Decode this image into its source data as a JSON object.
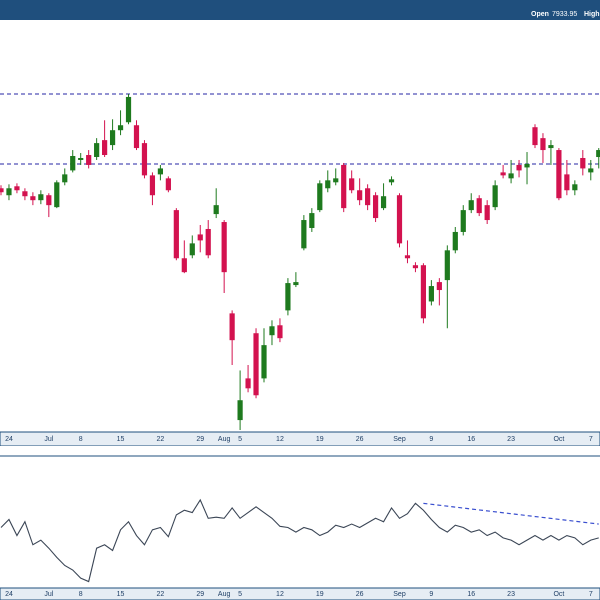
{
  "chart_data": [
    {
      "type": "candlestick",
      "open_label": "Open",
      "high_label": "High",
      "categories": [
        null,
        "24",
        null,
        null,
        null,
        null,
        "Jul",
        null,
        null,
        null,
        "8",
        null,
        null,
        null,
        null,
        "15",
        null,
        null,
        null,
        null,
        "22",
        null,
        null,
        null,
        null,
        "29",
        null,
        null,
        "Aug",
        null,
        "5",
        null,
        null,
        null,
        null,
        "12",
        null,
        null,
        null,
        null,
        "19",
        null,
        null,
        null,
        null,
        "26",
        null,
        null,
        null,
        null,
        "Sep",
        null,
        null,
        null,
        "9",
        null,
        null,
        null,
        null,
        "16",
        null,
        null,
        null,
        null,
        "23",
        null,
        null,
        null,
        null,
        null,
        "Oct",
        null,
        null,
        null,
        "7",
        null
      ],
      "open": [
        7871,
        7857,
        7875,
        7865,
        7855,
        7847,
        7857,
        7833,
        7883,
        7907,
        7928,
        7938,
        7934,
        7968,
        7958,
        7988,
        8004,
        7998,
        7962,
        7897,
        7899,
        7891,
        7827,
        7730,
        7736,
        7778,
        7789,
        7819,
        7803,
        7619,
        7404,
        7488,
        7579,
        7488,
        7575,
        7595,
        7625,
        7676,
        7750,
        7791,
        7827,
        7871,
        7883,
        7918,
        7891,
        7867,
        7871,
        7857,
        7831,
        7883,
        7857,
        7736,
        7716,
        7716,
        7643,
        7682,
        7686,
        7746,
        7783,
        7827,
        7851,
        7837,
        7833,
        7903,
        7891,
        7918,
        7913,
        7994,
        7972,
        7952,
        7948,
        7899,
        7867,
        7932,
        7903,
        7933.95
      ],
      "high": [
        7877,
        7879,
        7881,
        7871,
        7863,
        7867,
        7861,
        7887,
        7911,
        7948,
        7942,
        7948,
        7972,
        8008,
        8010,
        8028,
        8061,
        8008,
        7968,
        7903,
        7918,
        7895,
        7831,
        7766,
        7776,
        7797,
        7807,
        7871,
        7807,
        7625,
        7504,
        7515,
        7589,
        7589,
        7605,
        7609,
        7690,
        7702,
        7817,
        7831,
        7887,
        7907,
        7911,
        7922,
        7907,
        7891,
        7879,
        7863,
        7881,
        7895,
        7861,
        7766,
        7722,
        7720,
        7686,
        7690,
        7756,
        7793,
        7837,
        7861,
        7857,
        7847,
        7887,
        7918,
        7928,
        7928,
        7944,
        8000,
        7982,
        7968,
        7952,
        7928,
        7887,
        7948,
        7928,
        7952
      ],
      "low": [
        7857,
        7847,
        7861,
        7847,
        7837,
        7839,
        7813,
        7831,
        7877,
        7903,
        7918,
        7911,
        7928,
        7934,
        7948,
        7978,
        8000,
        7948,
        7891,
        7837,
        7887,
        7863,
        7726,
        7700,
        7730,
        7742,
        7730,
        7811,
        7660,
        7515,
        7384,
        7460,
        7448,
        7480,
        7555,
        7561,
        7615,
        7672,
        7746,
        7783,
        7823,
        7863,
        7877,
        7823,
        7861,
        7837,
        7827,
        7803,
        7827,
        7877,
        7752,
        7720,
        7702,
        7599,
        7635,
        7635,
        7589,
        7740,
        7776,
        7821,
        7815,
        7799,
        7827,
        7891,
        7881,
        7893,
        7879,
        7952,
        7922,
        7918,
        7847,
        7857,
        7857,
        7897,
        7887,
        7911
      ],
      "close": [
        7863,
        7871,
        7867,
        7855,
        7847,
        7859,
        7837,
        7883,
        7899,
        7936,
        7932,
        7918,
        7962,
        7938,
        7988,
        7998,
        8055,
        7952,
        7897,
        7857,
        7911,
        7867,
        7730,
        7702,
        7760,
        7766,
        7736,
        7837,
        7702,
        7565,
        7444,
        7468,
        7454,
        7555,
        7593,
        7569,
        7680,
        7682,
        7807,
        7821,
        7881,
        7887,
        7891,
        7831,
        7867,
        7847,
        7837,
        7811,
        7855,
        7889,
        7760,
        7730,
        7710,
        7609,
        7674,
        7666,
        7746,
        7783,
        7827,
        7847,
        7821,
        7807,
        7877,
        7897,
        7901,
        7907,
        7920,
        7958,
        7948,
        7958,
        7851,
        7867,
        7879,
        7911,
        7911,
        7948
      ],
      "ylim": [
        7380,
        8210
      ],
      "hlines": [
        8061,
        7920
      ],
      "up_color": "#1e7a1e",
      "down_color": "#d3124f",
      "hline_color": "#2626a6"
    },
    {
      "type": "line",
      "categories": [
        null,
        "24",
        null,
        null,
        null,
        null,
        "Jul",
        null,
        null,
        null,
        "8",
        null,
        null,
        null,
        null,
        "15",
        null,
        null,
        null,
        null,
        "22",
        null,
        null,
        null,
        null,
        "29",
        null,
        null,
        "Aug",
        null,
        "5",
        null,
        null,
        null,
        null,
        "12",
        null,
        null,
        null,
        null,
        "19",
        null,
        null,
        null,
        null,
        "26",
        null,
        null,
        null,
        null,
        "Sep",
        null,
        null,
        null,
        "9",
        null,
        null,
        null,
        null,
        "16",
        null,
        null,
        null,
        null,
        "23",
        null,
        null,
        null,
        null,
        null,
        "Oct",
        null,
        null,
        null,
        "7",
        null
      ],
      "values": [
        50,
        57,
        43,
        55,
        35,
        39,
        32,
        24,
        17,
        13,
        6,
        3,
        32,
        35,
        30,
        48,
        55,
        43,
        35,
        48,
        50,
        42,
        61,
        65,
        63,
        74,
        58,
        59,
        58,
        67,
        58,
        63,
        68,
        63,
        58,
        51,
        50,
        46,
        50,
        48,
        43,
        46,
        52,
        50,
        53,
        50,
        54,
        58,
        55,
        67,
        58,
        62,
        71,
        65,
        57,
        50,
        46,
        52,
        50,
        46,
        48,
        43,
        46,
        41,
        39,
        35,
        39,
        43,
        39,
        43,
        39,
        43,
        41,
        35,
        39,
        41
      ],
      "ylim": [
        0,
        100
      ],
      "color": "#3b4656",
      "trendline": {
        "x": [
          53,
          75
        ],
        "values": [
          71,
          53
        ]
      },
      "trendline_color": "#3a4fcf"
    }
  ]
}
